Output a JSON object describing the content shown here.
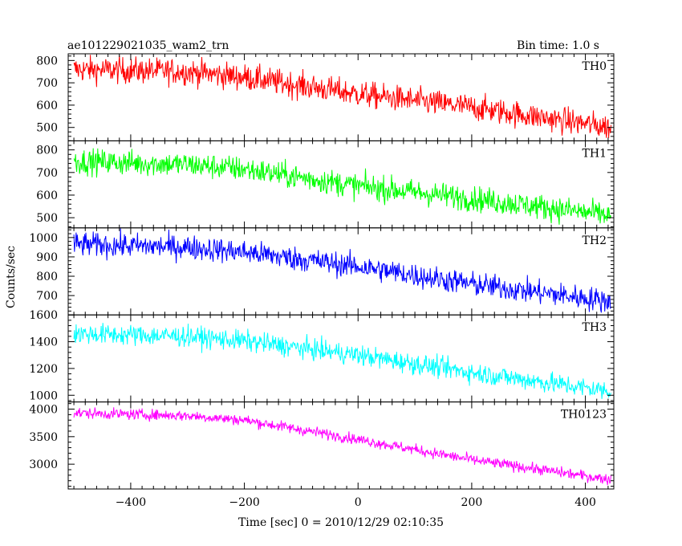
{
  "title_left": "ae101229021035_wam2_trn",
  "title_right": "Bin time: 1.0 s",
  "chart_data": {
    "type": "line",
    "xlabel": "Time [sec] 0 = 2010/12/29 02:10:35",
    "ylabel": "Counts/sec",
    "xlim": [
      -510,
      450
    ],
    "x_ticks": [
      -400,
      -200,
      0,
      200,
      400
    ],
    "bin_time_s": 1.0,
    "x_range": [
      -500,
      445
    ],
    "panels": [
      {
        "name": "TH0",
        "color": "#ff0000",
        "ylim": [
          440,
          830
        ],
        "y_ticks": [
          500,
          600,
          700,
          800
        ],
        "trend_x": [
          -500,
          -300,
          -200,
          0,
          200,
          445
        ],
        "trend_y": [
          760,
          750,
          725,
          650,
          590,
          500
        ],
        "noise": 42
      },
      {
        "name": "TH1",
        "color": "#00ff00",
        "ylim": [
          455,
          840
        ],
        "y_ticks": [
          500,
          600,
          700,
          800
        ],
        "trend_x": [
          -500,
          -300,
          -200,
          0,
          200,
          445
        ],
        "trend_y": [
          750,
          735,
          715,
          640,
          585,
          510
        ],
        "noise": 40
      },
      {
        "name": "TH2",
        "color": "#0000ff",
        "ylim": [
          600,
          1050
        ],
        "y_ticks": [
          700,
          800,
          900,
          1000
        ],
        "trend_x": [
          -500,
          -300,
          -200,
          0,
          200,
          445
        ],
        "trend_y": [
          965,
          950,
          925,
          850,
          760,
          670
        ],
        "noise": 45
      },
      {
        "name": "TH3",
        "color": "#00ffff",
        "ylim": [
          950,
          1600
        ],
        "y_ticks": [
          1000,
          1200,
          1400,
          1600
        ],
        "trend_x": [
          -500,
          -300,
          -200,
          0,
          200,
          445
        ],
        "trend_y": [
          1460,
          1440,
          1405,
          1300,
          1170,
          1030
        ],
        "noise": 55
      },
      {
        "name": "TH0123",
        "color": "#ff00ff",
        "ylim": [
          2550,
          4130
        ],
        "y_ticks": [
          3000,
          3500,
          4000
        ],
        "trend_x": [
          -500,
          -300,
          -200,
          0,
          200,
          445
        ],
        "trend_y": [
          3930,
          3880,
          3800,
          3450,
          3080,
          2720
        ],
        "noise": 70
      }
    ]
  }
}
